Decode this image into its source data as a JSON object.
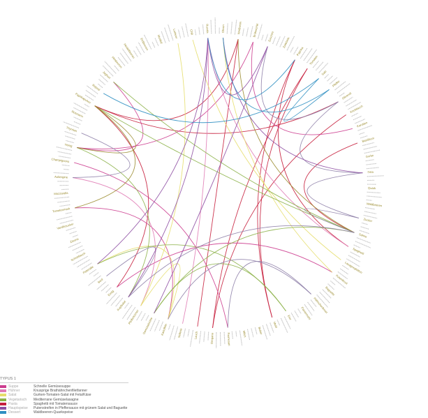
{
  "legend": {
    "title": "TYPUS 1",
    "items": [
      {
        "course": "Suppe",
        "dish": "Schnelle Gemüsesuppe",
        "color": "#cc3d8f"
      },
      {
        "course": "Hühner",
        "dish": "Knusprige Brathähnchenfiletfanner",
        "color": "#e07bb5"
      },
      {
        "course": "Salat",
        "dish": "Gurken-Tomaten-Salat mit Feta/Käse",
        "color": "#e6de6b"
      },
      {
        "course": "Vegetarisch",
        "dish": "Mediterrane Gemüselasagne",
        "color": "#8db34a"
      },
      {
        "course": "Pasta",
        "dish": "Spaghetti mit Tomatensauce",
        "color": "#c61e3c"
      },
      {
        "course": "Hauptspeise",
        "dish": "Putenstreifen in Pfeffersauce mit grünem Salat und Baguette",
        "color": "#8e4fa3"
      },
      {
        "course": "Dessert",
        "dish": "Waldbeeren-Quarkspeise",
        "color": "#2f8fc2"
      }
    ]
  },
  "ring_labels": [
    {
      "text": "Zucchini",
      "color": "#9a8b2e"
    },
    {
      "text": "Zwiebeln",
      "color": "#9a8b2e"
    },
    {
      "text": "Paprika",
      "color": "#9a8b2e"
    },
    {
      "text": "Tomaten",
      "color": "#9a8b2e"
    },
    {
      "text": "Salz",
      "color": "#9a8b2e"
    },
    {
      "text": "Pfeffer",
      "color": "#9a8b2e"
    },
    {
      "text": "Olivenöl",
      "color": "#9a8b2e"
    },
    {
      "text": "Knoblauch",
      "color": "#9a8b2e"
    },
    {
      "text": "Karotten",
      "color": "#9a8b2e"
    },
    {
      "text": "Basilikum",
      "color": "#9a8b2e"
    },
    {
      "text": "Gurke",
      "color": "#9a8b2e"
    },
    {
      "text": "Feta",
      "color": "#9a8b2e"
    },
    {
      "text": "Quark",
      "color": "#9a8b2e"
    },
    {
      "text": "Waldbeeren",
      "color": "#9a8b2e"
    },
    {
      "text": "Zucker",
      "color": "#9a8b2e"
    },
    {
      "text": "Sahne",
      "color": "#9a8b2e"
    },
    {
      "text": "Spaghetti",
      "color": "#9a8b2e"
    },
    {
      "text": "Lasagneplatten",
      "color": "#9a8b2e"
    },
    {
      "text": "Putenbrust",
      "color": "#9a8b2e"
    },
    {
      "text": "Baguette",
      "color": "#9a8b2e"
    },
    {
      "text": "Hähnchenbrust",
      "color": "#9a8b2e"
    },
    {
      "text": "Paniermehl",
      "color": "#9a8b2e"
    },
    {
      "text": "Eier",
      "color": "#9a8b2e"
    },
    {
      "text": "Mehl",
      "color": "#9a8b2e"
    },
    {
      "text": "Butter",
      "color": "#9a8b2e"
    },
    {
      "text": "Milch",
      "color": "#9a8b2e"
    },
    {
      "text": "Parmesan",
      "color": "#9a8b2e"
    },
    {
      "text": "Oregano",
      "color": "#9a8b2e"
    },
    {
      "text": "Lauch",
      "color": "#9a8b2e"
    },
    {
      "text": "Sellerie",
      "color": "#9a8b2e"
    },
    {
      "text": "Kartoffeln",
      "color": "#9a8b2e"
    },
    {
      "text": "Gemüsebrühe",
      "color": "#9a8b2e"
    },
    {
      "text": "Pfefferkörner",
      "color": "#9a8b2e"
    },
    {
      "text": "Kopfsalat",
      "color": "#9a8b2e"
    },
    {
      "text": "Essig",
      "color": "#9a8b2e"
    },
    {
      "text": "Senf",
      "color": "#9a8b2e"
    },
    {
      "text": "Petersilie",
      "color": "#9a8b2e"
    },
    {
      "text": "Schnittlauch",
      "color": "#9a8b2e"
    },
    {
      "text": "Zitrone",
      "color": "#9a8b2e"
    },
    {
      "text": "Vanillezucker",
      "color": "#9a8b2e"
    },
    {
      "text": "Tomatenmark",
      "color": "#9a8b2e"
    },
    {
      "text": "Mozzarella",
      "color": "#9a8b2e"
    },
    {
      "text": "Aubergine",
      "color": "#9a8b2e"
    },
    {
      "text": "Champignons",
      "color": "#9a8b2e"
    },
    {
      "text": "Honig",
      "color": "#9a8b2e"
    },
    {
      "text": "Thymian",
      "color": "#9a8b2e"
    },
    {
      "text": "Rosmarin",
      "color": "#9a8b2e"
    },
    {
      "text": "Paprikapulver",
      "color": "#9a8b2e"
    },
    {
      "text": "Rapsöl",
      "color": "#9a8b2e"
    },
    {
      "text": "Joghurt",
      "color": "#9a8b2e"
    },
    {
      "text": "Himbeeren",
      "color": "#9a8b2e"
    },
    {
      "text": "Heidelbeeren",
      "color": "#9a8b2e"
    },
    {
      "text": "Erdbeeren",
      "color": "#9a8b2e"
    },
    {
      "text": "Muskat",
      "color": "#9a8b2e"
    },
    {
      "text": "Lorbeer",
      "color": "#9a8b2e"
    },
    {
      "text": "Chili",
      "color": "#9a8b2e"
    },
    {
      "text": "Rucola",
      "color": "#9a8b2e"
    },
    {
      "text": "Oliven",
      "color": "#9a8b2e"
    },
    {
      "text": "Weißwein",
      "color": "#9a8b2e"
    },
    {
      "text": "Brühwürfel",
      "color": "#9a8b2e"
    }
  ],
  "filler_label_color": "#c2c2c2",
  "connections": [
    {
      "a": 2,
      "b": 16,
      "color": "#c61e3c"
    },
    {
      "a": 2,
      "b": 23,
      "color": "#c61e3c"
    },
    {
      "a": 3,
      "b": 23,
      "color": "#c61e3c"
    },
    {
      "a": 3,
      "b": 27,
      "color": "#c61e3c"
    },
    {
      "a": 7,
      "b": 27,
      "color": "#c61e3c"
    },
    {
      "a": 9,
      "b": 15,
      "color": "#c61e3c"
    },
    {
      "a": 34,
      "b": 47,
      "color": "#c61e3c"
    },
    {
      "a": 47,
      "b": 6,
      "color": "#c61e3c"
    },
    {
      "a": 47,
      "b": 58,
      "color": "#c61e3c"
    },
    {
      "a": 58,
      "b": 28,
      "color": "#c61e3c"
    },
    {
      "a": 34,
      "b": 18,
      "color": "#cc3d8f"
    },
    {
      "a": 43,
      "b": 26,
      "color": "#cc3d8f"
    },
    {
      "a": 40,
      "b": 30,
      "color": "#cc3d8f"
    },
    {
      "a": 44,
      "b": 49,
      "color": "#cc3d8f"
    },
    {
      "a": 44,
      "b": 59,
      "color": "#cc3d8f"
    },
    {
      "a": 59,
      "b": 8,
      "color": "#cc3d8f"
    },
    {
      "a": 56,
      "b": 16,
      "color": "#e07bb5"
    },
    {
      "a": 56,
      "b": 29,
      "color": "#e07bb5"
    },
    {
      "a": 32,
      "b": 42,
      "color": "#e07bb5"
    },
    {
      "a": 57,
      "b": 18,
      "color": "#e6de6b"
    },
    {
      "a": 55,
      "b": 17,
      "color": "#e6de6b"
    },
    {
      "a": 54,
      "b": 32,
      "color": "#e6de6b"
    },
    {
      "a": 32,
      "b": 30,
      "color": "#e6de6b"
    },
    {
      "a": 30,
      "b": 36,
      "color": "#e6de6b"
    },
    {
      "a": 49,
      "b": 15,
      "color": "#8db34a"
    },
    {
      "a": 47,
      "b": 15,
      "color": "#8db34a"
    },
    {
      "a": 44,
      "b": 33,
      "color": "#8db34a"
    },
    {
      "a": 15,
      "b": 31,
      "color": "#8db34a"
    },
    {
      "a": 31,
      "b": 22,
      "color": "#8db34a"
    },
    {
      "a": 22,
      "b": 36,
      "color": "#8db34a"
    },
    {
      "a": 40,
      "b": 47,
      "color": "#9a8b2e"
    },
    {
      "a": 58,
      "b": 15,
      "color": "#9a8b2e"
    },
    {
      "a": 47,
      "b": 44,
      "color": "#9a8b2e"
    },
    {
      "a": 0,
      "b": 6,
      "color": "#8e7fa8"
    },
    {
      "a": 6,
      "b": 11,
      "color": "#8e7fa8"
    },
    {
      "a": 11,
      "b": 14,
      "color": "#8e7fa8"
    },
    {
      "a": 14,
      "b": 15,
      "color": "#8e7fa8"
    },
    {
      "a": 15,
      "b": 33,
      "color": "#8e7fa8"
    },
    {
      "a": 33,
      "b": 35,
      "color": "#8e7fa8"
    },
    {
      "a": 42,
      "b": 45,
      "color": "#8e7fa8"
    },
    {
      "a": 20,
      "b": 30,
      "color": "#8e7fa8"
    },
    {
      "a": 20,
      "b": 26,
      "color": "#8e7fa8"
    },
    {
      "a": 56,
      "b": 33,
      "color": "#8e4fa3"
    },
    {
      "a": 56,
      "b": 60,
      "color": "#8e4fa3"
    },
    {
      "a": 56,
      "b": 36,
      "color": "#8e4fa3"
    },
    {
      "a": 60,
      "b": 31,
      "color": "#8e4fa3"
    },
    {
      "a": 57,
      "b": 11,
      "color": "#8e4fa3"
    },
    {
      "a": 56,
      "b": 2,
      "color": "#2f8fc2"
    },
    {
      "a": 57,
      "b": 5,
      "color": "#2f8fc2"
    },
    {
      "a": 48,
      "b": 4,
      "color": "#2f8fc2"
    },
    {
      "a": 4,
      "b": 5,
      "color": "#2f8fc2"
    }
  ]
}
